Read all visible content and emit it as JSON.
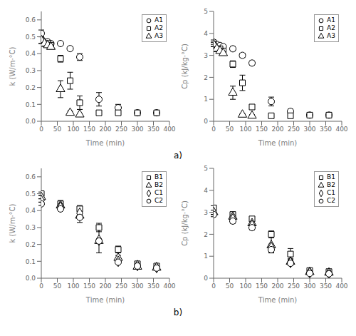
{
  "chart_data": [
    {
      "type": "scatter",
      "xlabel": "Time (min)",
      "ylabel": "k (W/m·°C)",
      "xlim": [
        0,
        400
      ],
      "ylim": [
        0,
        0.65
      ],
      "xticks": [
        0,
        50,
        100,
        150,
        200,
        250,
        300,
        350,
        400
      ],
      "yticks": [
        {
          "value": 0.0,
          "label": "0.0"
        },
        0.1,
        0.2,
        0.3,
        0.4,
        0.5,
        0.6
      ],
      "grid": false,
      "legend": "upper right",
      "series": [
        {
          "name": "A1",
          "marker": "circle",
          "color": "#000000",
          "x": [
            0,
            10,
            20,
            30,
            60,
            90,
            120,
            180,
            240,
            300,
            360
          ],
          "values": [
            0.52,
            0.47,
            0.47,
            0.46,
            0.46,
            0.43,
            0.38,
            0.13,
            0.08,
            0.05,
            0.05
          ],
          "yerr": [
            0.02,
            0.01,
            0.01,
            0.01,
            0.01,
            0.01,
            0.02,
            0.04,
            0.02,
            0.005,
            0.005
          ]
        },
        {
          "name": "A2",
          "marker": "square",
          "color": "#000000",
          "x": [
            0,
            10,
            20,
            30,
            60,
            90,
            120,
            180,
            240,
            300,
            360
          ],
          "values": [
            0.48,
            0.46,
            0.46,
            0.45,
            0.37,
            0.24,
            0.11,
            0.05,
            0.05,
            0.05,
            0.05
          ],
          "yerr": [
            0.02,
            0.01,
            0.01,
            0.01,
            0.02,
            0.05,
            0.04,
            0.01,
            0.01,
            0.005,
            0.005
          ]
        },
        {
          "name": "A3",
          "marker": "triangle",
          "color": "#000000",
          "x": [
            0,
            10,
            20,
            30,
            60,
            90,
            120
          ],
          "values": [
            0.48,
            0.46,
            0.45,
            0.44,
            0.19,
            0.05,
            0.04
          ],
          "yerr": [
            0.02,
            0.01,
            0.01,
            0.01,
            0.05,
            0.01,
            0.005
          ]
        }
      ]
    },
    {
      "type": "scatter",
      "xlabel": "Time (min)",
      "ylabel": "Cp (kJ/kg·°C)",
      "xlim": [
        0,
        400
      ],
      "ylim": [
        0,
        5
      ],
      "xticks": [
        0,
        50,
        100,
        150,
        200,
        250,
        300,
        350,
        400
      ],
      "yticks": [
        0,
        1,
        2,
        3,
        4,
        5
      ],
      "grid": false,
      "legend": "upper right",
      "series": [
        {
          "name": "A1",
          "marker": "circle",
          "color": "#000000",
          "x": [
            0,
            10,
            20,
            30,
            60,
            90,
            120,
            180,
            240,
            300,
            360
          ],
          "values": [
            3.6,
            3.5,
            3.45,
            3.4,
            3.3,
            3.0,
            2.65,
            0.9,
            0.45,
            0.28,
            0.28
          ],
          "yerr": [
            0.1,
            0.05,
            0.05,
            0.05,
            0.1,
            0.1,
            0.1,
            0.2,
            0.1,
            0.05,
            0.05
          ]
        },
        {
          "name": "A2",
          "marker": "square",
          "color": "#000000",
          "x": [
            0,
            10,
            20,
            30,
            60,
            90,
            120,
            180,
            240,
            300,
            360
          ],
          "values": [
            3.5,
            3.3,
            3.3,
            3.2,
            2.6,
            1.75,
            0.65,
            0.25,
            0.25,
            0.28,
            0.28
          ],
          "yerr": [
            0.1,
            0.1,
            0.1,
            0.1,
            0.15,
            0.35,
            0.1,
            0.05,
            0.05,
            0.05,
            0.05
          ]
        },
        {
          "name": "A3",
          "marker": "triangle",
          "color": "#000000",
          "x": [
            0,
            10,
            20,
            30,
            60,
            90,
            120
          ],
          "values": [
            3.5,
            3.3,
            3.2,
            3.1,
            1.3,
            0.3,
            0.25
          ],
          "yerr": [
            0.1,
            0.1,
            0.1,
            0.1,
            0.3,
            0.05,
            0.05
          ]
        }
      ]
    },
    {
      "type": "scatter",
      "xlabel": "Time (min)",
      "ylabel": "k (W/m·°C)",
      "xlim": [
        0,
        400
      ],
      "ylim": [
        0,
        0.65
      ],
      "xticks": [
        0,
        50,
        100,
        150,
        200,
        250,
        300,
        350,
        400
      ],
      "yticks": [
        {
          "value": 0.0,
          "label": "0.0"
        },
        0.1,
        0.2,
        0.3,
        0.4,
        0.5,
        0.6
      ],
      "grid": false,
      "legend": "upper right",
      "series": [
        {
          "name": "B1",
          "marker": "square",
          "color": "#000000",
          "x": [
            0,
            60,
            120,
            180,
            240,
            300,
            360
          ],
          "values": [
            0.5,
            0.44,
            0.41,
            0.3,
            0.17,
            0.085,
            0.072
          ],
          "yerr": [
            0.01,
            0.02,
            0.02,
            0.025,
            0.02,
            0.015,
            0.01
          ]
        },
        {
          "name": "B2",
          "marker": "triangle",
          "color": "#000000",
          "x": [
            0,
            60,
            120,
            180,
            240,
            300,
            360
          ],
          "values": [
            0.48,
            0.43,
            0.37,
            0.22,
            0.12,
            0.068,
            0.062
          ],
          "yerr": [
            0.01,
            0.02,
            0.04,
            0.07,
            0.015,
            0.008,
            0.008
          ]
        },
        {
          "name": "C1",
          "marker": "diamond",
          "color": "#000000",
          "x": [
            0,
            60,
            120,
            180,
            240,
            300,
            360
          ],
          "values": [
            0.46,
            0.42,
            0.385,
            0.225,
            0.1,
            0.075,
            0.063
          ],
          "yerr": [
            0.01,
            0.01,
            0.01,
            0.01,
            0.01,
            0.01,
            0.005
          ]
        },
        {
          "name": "C2",
          "marker": "circle",
          "color": "#000000",
          "x": [
            0,
            60,
            120,
            180,
            240,
            300,
            360
          ],
          "values": [
            0.44,
            0.41,
            0.36,
            0.22,
            0.095,
            0.072,
            0.06
          ],
          "yerr": [
            0.01,
            0.01,
            0.01,
            0.01,
            0.01,
            0.008,
            0.005
          ]
        }
      ]
    },
    {
      "type": "scatter",
      "xlabel": "Time (min)",
      "ylabel": "Cp (kJ/kg·°C)",
      "xlim": [
        0,
        400
      ],
      "ylim": [
        0,
        5
      ],
      "xticks": [
        0,
        50,
        100,
        150,
        200,
        250,
        300,
        350,
        400
      ],
      "yticks": [
        0,
        1,
        2,
        3,
        4,
        5
      ],
      "grid": false,
      "legend": "upper right",
      "series": [
        {
          "name": "B1",
          "marker": "square",
          "color": "#000000",
          "x": [
            0,
            60,
            120,
            180,
            240,
            300,
            360
          ],
          "values": [
            3.2,
            2.9,
            2.7,
            2.0,
            1.1,
            0.35,
            0.3
          ],
          "yerr": [
            0.1,
            0.1,
            0.1,
            0.15,
            0.25,
            0.05,
            0.05
          ]
        },
        {
          "name": "B2",
          "marker": "triangle",
          "color": "#000000",
          "x": [
            0,
            60,
            120,
            180,
            240,
            300,
            360
          ],
          "values": [
            3.0,
            2.8,
            2.5,
            1.5,
            0.75,
            0.28,
            0.25
          ],
          "yerr": [
            0.1,
            0.1,
            0.2,
            0.35,
            0.15,
            0.05,
            0.05
          ]
        },
        {
          "name": "C1",
          "marker": "diamond",
          "color": "#000000",
          "x": [
            0,
            60,
            120,
            180,
            240,
            300,
            360
          ],
          "values": [
            3.0,
            2.7,
            2.4,
            1.4,
            0.72,
            0.25,
            0.22
          ],
          "yerr": [
            0.1,
            0.1,
            0.1,
            0.15,
            0.1,
            0.04,
            0.04
          ]
        },
        {
          "name": "C2",
          "marker": "circle",
          "color": "#000000",
          "x": [
            0,
            60,
            120,
            180,
            240,
            300,
            360
          ],
          "values": [
            2.9,
            2.6,
            2.3,
            1.3,
            0.68,
            0.22,
            0.2
          ],
          "yerr": [
            0.1,
            0.1,
            0.1,
            0.12,
            0.1,
            0.04,
            0.04
          ]
        }
      ]
    }
  ],
  "annotations": [
    "a)",
    "b)"
  ]
}
